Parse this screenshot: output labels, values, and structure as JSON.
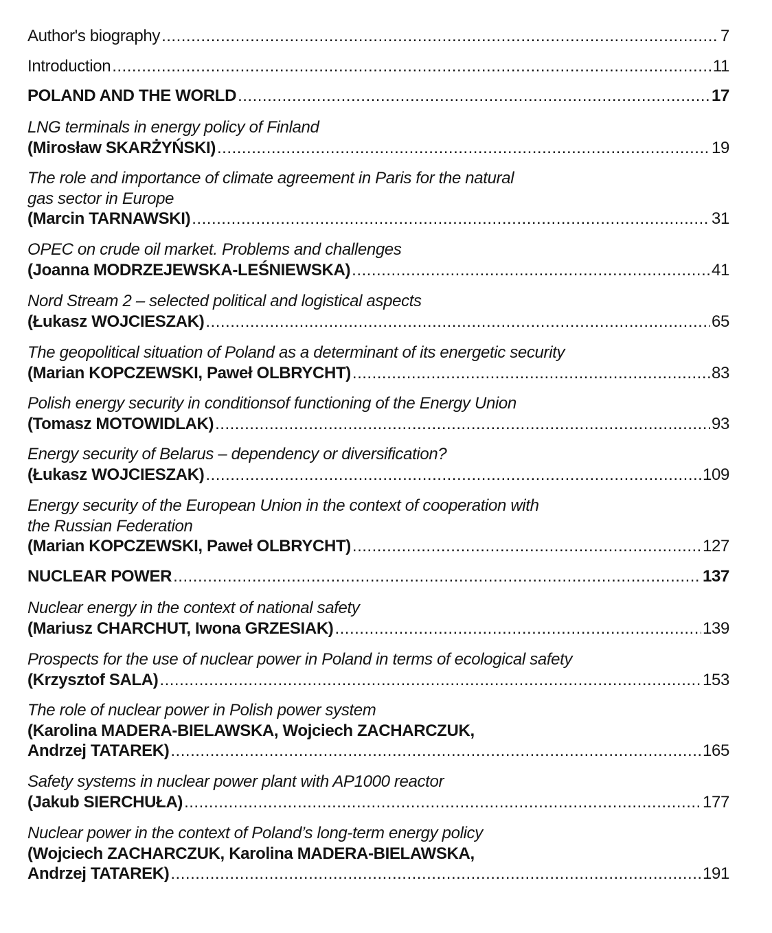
{
  "toc": [
    {
      "lines": [],
      "last": "Author's biography",
      "page": "7",
      "style": "plain"
    },
    {
      "lines": [],
      "last": "Introduction",
      "page": "11",
      "style": "plain"
    },
    {
      "lines": [],
      "last": "POLAND AND THE WORLD",
      "page": "17",
      "style": "section"
    },
    {
      "lines": [
        "LNG terminals in energy policy of Finland"
      ],
      "last": "(Mirosław SKARŻYŃSKI)",
      "page": "19",
      "style": "article"
    },
    {
      "lines": [
        "The role and importance of climate agreement in Paris for the natural",
        "gas sector in Europe"
      ],
      "last": "(Marcin TARNAWSKI)",
      "page": "31",
      "style": "article"
    },
    {
      "lines": [
        "OPEC on crude oil market. Problems and challenges"
      ],
      "last": "(Joanna MODRZEJEWSKA-LEŚNIEWSKA)",
      "page": "41",
      "style": "article"
    },
    {
      "lines": [
        "Nord Stream 2 – selected political and logistical aspects"
      ],
      "last": "(Łukasz WOJCIESZAK)",
      "page": "65",
      "style": "article"
    },
    {
      "lines": [
        "The geopolitical situation of Poland as a determinant of its energetic security"
      ],
      "last": "(Marian KOPCZEWSKI, Paweł OLBRYCHT)",
      "page": "83",
      "style": "article"
    },
    {
      "lines": [
        "Polish energy security in conditionsof functioning of the Energy Union"
      ],
      "last": "(Tomasz MOTOWIDLAK)",
      "page": "93",
      "style": "article"
    },
    {
      "lines": [
        "Energy security of Belarus – dependency or diversification?"
      ],
      "last": "(Łukasz WOJCIESZAK)",
      "page": "109",
      "style": "article"
    },
    {
      "lines": [
        "Energy security of the European Union in the context of cooperation with",
        "the Russian Federation"
      ],
      "last": "(Marian KOPCZEWSKI, Paweł OLBRYCHT)",
      "page": "127",
      "style": "article"
    },
    {
      "lines": [],
      "last": "NUCLEAR POWER",
      "page": "137",
      "style": "section"
    },
    {
      "lines": [
        "Nuclear energy in the context of national safety"
      ],
      "last": "(Mariusz CHARCHUT, Iwona GRZESIAK)",
      "page": "139",
      "style": "article"
    },
    {
      "lines": [
        "Prospects for the use of nuclear power in Poland in terms of ecological safety"
      ],
      "last": "(Krzysztof SALA)",
      "page": "153",
      "style": "article"
    },
    {
      "lines": [
        "The role of nuclear power in Polish power system",
        "(Karolina MADERA-BIELAWSKA, Wojciech ZACHARCZUK,"
      ],
      "last": "Andrzej TATAREK)",
      "page": "165",
      "style": "article",
      "bold_lines_from": 1
    },
    {
      "lines": [
        "Safety systems in nuclear power plant with AP1000 reactor"
      ],
      "last": "(Jakub SIERCHUŁA)",
      "page": "177",
      "style": "article"
    },
    {
      "lines": [
        "Nuclear power in the context of Poland’s long-term energy policy",
        "(Wojciech ZACHARCZUK, Karolina MADERA-BIELAWSKA,"
      ],
      "last": "Andrzej TATAREK)",
      "page": "191",
      "style": "article",
      "bold_lines_from": 1
    }
  ]
}
